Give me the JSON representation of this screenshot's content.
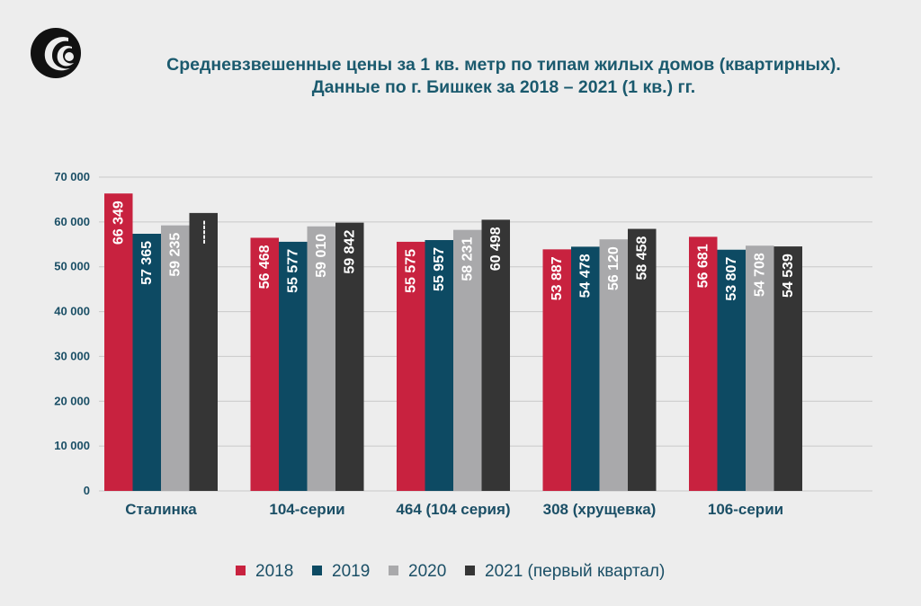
{
  "title_line1": "Средневзвешенные цены за 1 кв. метр по типам жилых домов (квартирных).",
  "title_line2": "Данные по г. Бишкек за 2018 – 2021 (1 кв.) гг.",
  "chart_data": {
    "type": "bar",
    "categories": [
      "Сталинка",
      "104-серии",
      "464 (104 серия)",
      "308 (хрущевка)",
      "106-серии"
    ],
    "series": [
      {
        "name": "2018",
        "color": "#c8223f",
        "values": [
          66349,
          56468,
          55575,
          53887,
          56681
        ],
        "labels": [
          "66 349",
          "56 468",
          "55 575",
          "53 887",
          "56 681"
        ]
      },
      {
        "name": "2019",
        "color": "#0d4a63",
        "values": [
          57365,
          55577,
          55957,
          54478,
          53807
        ],
        "labels": [
          "57 365",
          "55 577",
          "55 957",
          "54 478",
          "53 807"
        ]
      },
      {
        "name": "2020",
        "color": "#a9a9ab",
        "values": [
          59235,
          59010,
          58231,
          56120,
          54708
        ],
        "labels": [
          "59 235",
          "59 010",
          "58 231",
          "56 120",
          "54 708"
        ]
      },
      {
        "name": "2021 (первый квартал)",
        "color": "#353535",
        "values": [
          62000,
          59842,
          60498,
          58458,
          54539
        ],
        "labels": [
          "-----",
          "59 842",
          "60 498",
          "58 458",
          "54 539"
        ]
      }
    ],
    "ylim": [
      0,
      70000
    ],
    "yticks": [
      0,
      10000,
      20000,
      30000,
      40000,
      50000,
      60000,
      70000
    ],
    "ytick_labels": [
      "0",
      "10 000",
      "20 000",
      "30 000",
      "40 000",
      "50 000",
      "60 000",
      "70 000"
    ],
    "grid": true,
    "legend_position": "bottom"
  }
}
